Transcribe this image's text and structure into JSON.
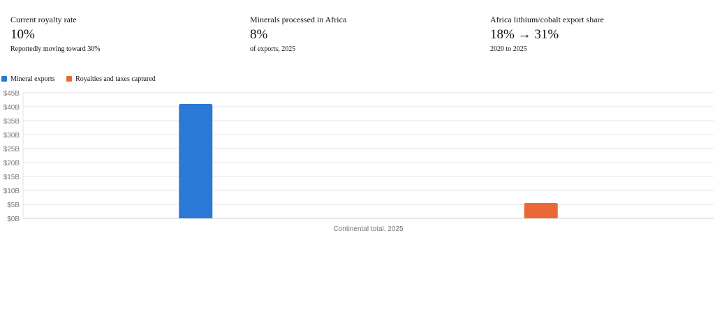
{
  "stats": [
    {
      "label": "Current royalty rate",
      "value": "10%",
      "sub": "Reportedly moving toward 30%"
    },
    {
      "label": "Minerals processed in Africa",
      "value": "8%",
      "sub": "of exports, 2025"
    },
    {
      "label": "Africa lithium/cobalt export share",
      "value": "18% → 31%",
      "sub": "2020 to 2025"
    }
  ],
  "chart_data": {
    "type": "bar",
    "categories": [
      "Continental total, 2025"
    ],
    "series": [
      {
        "name": "Mineral exports",
        "color": "#2b78d6",
        "values": [
          41
        ]
      },
      {
        "name": "Royalties and taxes captured",
        "color": "#ec6736",
        "values": [
          5.5
        ]
      }
    ],
    "ylim": [
      0,
      45
    ],
    "yticks": [
      0,
      5,
      10,
      15,
      20,
      25,
      30,
      35,
      40,
      45
    ],
    "ytick_labels": [
      "$0B",
      "$5B",
      "$10B",
      "$15B",
      "$20B",
      "$25B",
      "$30B",
      "$35B",
      "$40B",
      "$45B"
    ],
    "grid": true,
    "legend_position": "top-left"
  }
}
